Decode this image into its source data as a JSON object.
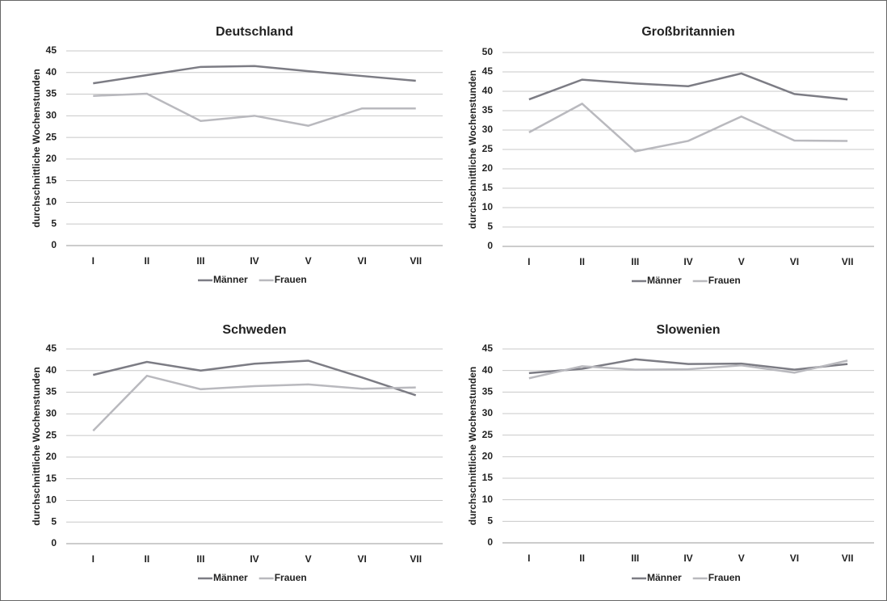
{
  "chart_data": [
    {
      "type": "line",
      "title": "Deutschland",
      "y_label": "durchschnittliche Wochenstunden",
      "categories": [
        "I",
        "II",
        "III",
        "IV",
        "V",
        "VI",
        "VII"
      ],
      "ylim": [
        0,
        45
      ],
      "yticks": [
        0,
        5,
        10,
        15,
        20,
        25,
        30,
        35,
        40,
        45
      ],
      "grid": true,
      "series": [
        {
          "name": "Männer",
          "color": "#7c7c84",
          "values": [
            37.5,
            39.4,
            41.3,
            41.5,
            40.3,
            39.2,
            38.1
          ]
        },
        {
          "name": "Frauen",
          "color": "#b9b9be",
          "values": [
            34.6,
            35.1,
            28.8,
            30.0,
            27.7,
            31.7,
            31.7
          ]
        }
      ]
    },
    {
      "type": "line",
      "title": "Großbritannien",
      "y_label": "durchschnittliche Wochenstunden",
      "categories": [
        "I",
        "II",
        "III",
        "IV",
        "V",
        "VI",
        "VII"
      ],
      "ylim": [
        0,
        50
      ],
      "yticks": [
        0,
        5,
        10,
        15,
        20,
        25,
        30,
        35,
        40,
        45,
        50
      ],
      "grid": true,
      "series": [
        {
          "name": "Männer",
          "color": "#7c7c84",
          "values": [
            37.9,
            43.0,
            42.0,
            41.3,
            44.6,
            39.3,
            37.9
          ]
        },
        {
          "name": "Frauen",
          "color": "#b9b9be",
          "values": [
            29.4,
            36.8,
            24.5,
            27.2,
            33.5,
            27.3,
            27.2
          ]
        }
      ]
    },
    {
      "type": "line",
      "title": "Schweden",
      "y_label": "durchschnittliche Wochenstunden",
      "categories": [
        "I",
        "II",
        "III",
        "IV",
        "V",
        "VI",
        "VII"
      ],
      "ylim": [
        0,
        45
      ],
      "yticks": [
        0,
        5,
        10,
        15,
        20,
        25,
        30,
        35,
        40,
        45
      ],
      "grid": true,
      "series": [
        {
          "name": "Männer",
          "color": "#7c7c84",
          "values": [
            39.0,
            42.0,
            40.0,
            41.6,
            42.3,
            38.4,
            34.3
          ]
        },
        {
          "name": "Frauen",
          "color": "#b9b9be",
          "values": [
            26.1,
            38.8,
            35.7,
            36.4,
            36.8,
            35.8,
            36.1
          ]
        }
      ]
    },
    {
      "type": "line",
      "title": "Slowenien",
      "y_label": "durchschnittliche Wochenstunden",
      "categories": [
        "I",
        "II",
        "III",
        "IV",
        "V",
        "VI",
        "VII"
      ],
      "ylim": [
        0,
        45
      ],
      "yticks": [
        0,
        5,
        10,
        15,
        20,
        25,
        30,
        35,
        40,
        45
      ],
      "grid": true,
      "series": [
        {
          "name": "Männer",
          "color": "#7c7c84",
          "values": [
            39.4,
            40.4,
            42.6,
            41.5,
            41.6,
            40.2,
            41.5
          ]
        },
        {
          "name": "Frauen",
          "color": "#b9b9be",
          "values": [
            38.2,
            41.0,
            40.2,
            40.3,
            41.2,
            39.5,
            42.3
          ]
        }
      ]
    }
  ]
}
